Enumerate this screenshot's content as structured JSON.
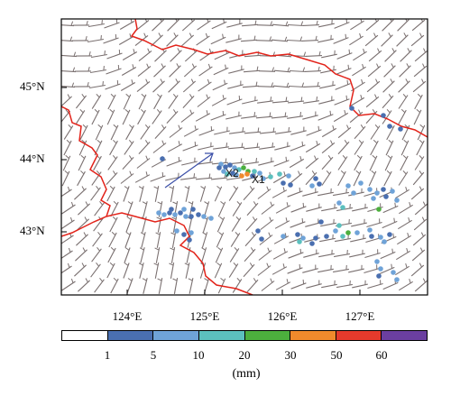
{
  "map": {
    "latitude_labels": [
      "45°N",
      "44°N",
      "43°N"
    ],
    "longitude_labels": [
      "124°E",
      "125°E",
      "126°E",
      "127°E"
    ],
    "station_markers": [
      "X2",
      "X1"
    ],
    "layers": [
      "wind-barbs",
      "precipitation-stations",
      "boundary-line",
      "motion-arrow"
    ]
  },
  "legend": {
    "unit": "(mm)",
    "ticks": [
      "1",
      "5",
      "10",
      "20",
      "30",
      "50",
      "60"
    ],
    "colors": [
      "#ffffff",
      "#4a6fb0",
      "#6fa3d8",
      "#5cc0be",
      "#4caf3d",
      "#f08a2c",
      "#e53a2c",
      "#6b3fa0"
    ]
  },
  "colors": {
    "boundary": "#e2231a",
    "barbs": "#7a7070",
    "frame": "#000000",
    "motion_arrow": "#3b4fa8"
  }
}
